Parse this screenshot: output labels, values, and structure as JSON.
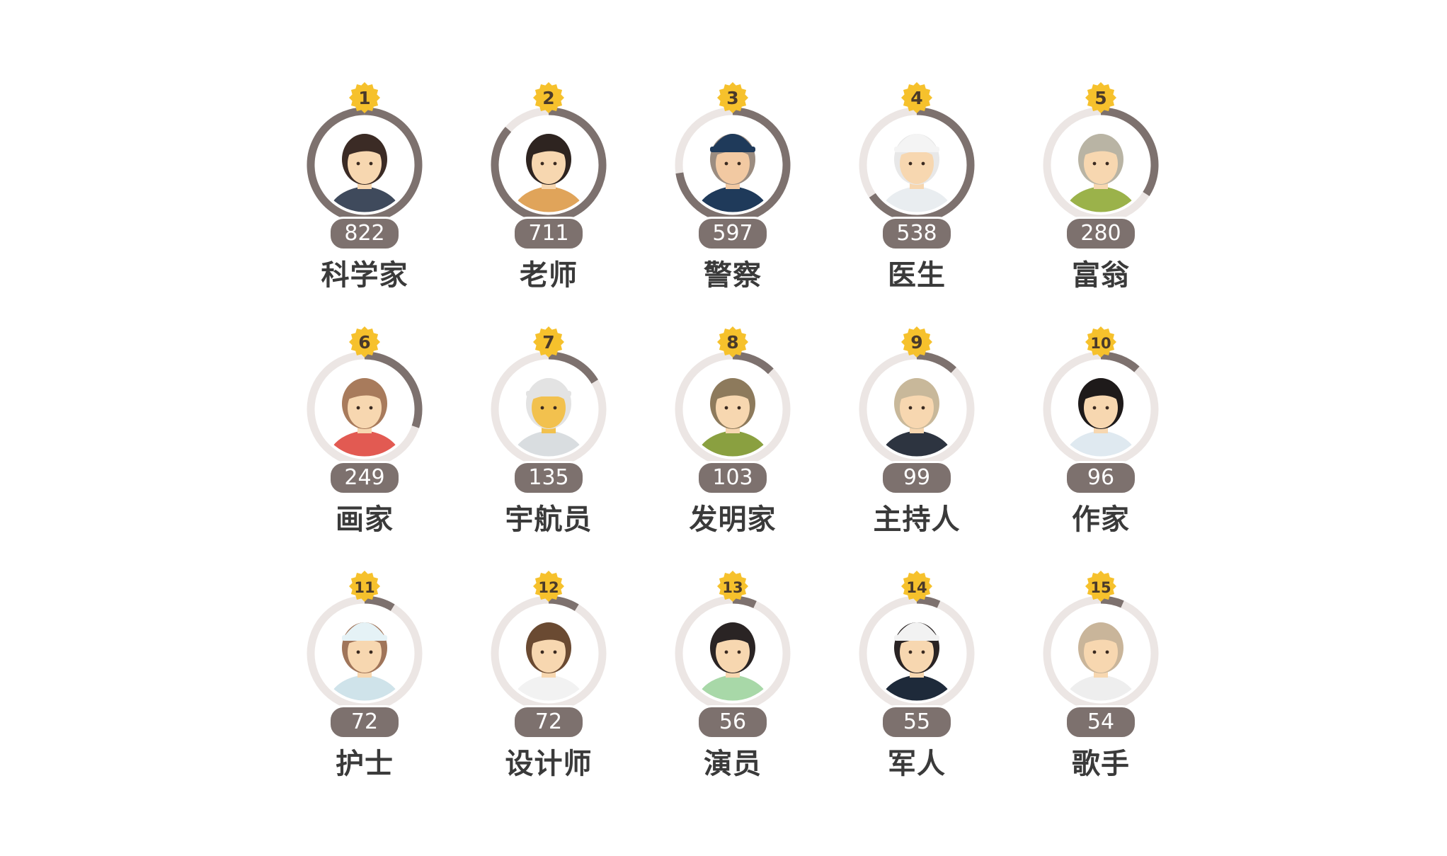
{
  "chart_data": {
    "type": "other",
    "items": [
      {
        "rank": 1,
        "label": "科学家",
        "value": 822,
        "icon": "scientist-avatar-icon"
      },
      {
        "rank": 2,
        "label": "老师",
        "value": 711,
        "icon": "teacher-avatar-icon"
      },
      {
        "rank": 3,
        "label": "警察",
        "value": 597,
        "icon": "police-avatar-icon"
      },
      {
        "rank": 4,
        "label": "医生",
        "value": 538,
        "icon": "doctor-avatar-icon"
      },
      {
        "rank": 5,
        "label": "富翁",
        "value": 280,
        "icon": "rich-person-avatar-icon"
      },
      {
        "rank": 6,
        "label": "画家",
        "value": 249,
        "icon": "painter-avatar-icon"
      },
      {
        "rank": 7,
        "label": "宇航员",
        "value": 135,
        "icon": "astronaut-avatar-icon"
      },
      {
        "rank": 8,
        "label": "发明家",
        "value": 103,
        "icon": "inventor-avatar-icon"
      },
      {
        "rank": 9,
        "label": "主持人",
        "value": 99,
        "icon": "host-avatar-icon"
      },
      {
        "rank": 10,
        "label": "作家",
        "value": 96,
        "icon": "writer-avatar-icon"
      },
      {
        "rank": 11,
        "label": "护士",
        "value": 72,
        "icon": "nurse-avatar-icon"
      },
      {
        "rank": 12,
        "label": "设计师",
        "value": 72,
        "icon": "designer-avatar-icon"
      },
      {
        "rank": 13,
        "label": "演员",
        "value": 56,
        "icon": "actor-avatar-icon"
      },
      {
        "rank": 14,
        "label": "军人",
        "value": 55,
        "icon": "soldier-avatar-icon"
      },
      {
        "rank": 15,
        "label": "歌手",
        "value": 54,
        "icon": "singer-avatar-icon"
      }
    ],
    "ring_max": 822,
    "grid": "3 rows x 5 columns"
  },
  "colors": {
    "ring_fill": "#7d716e",
    "ring_track": "#ece6e4",
    "rank_badge": "#f6c12c",
    "rank_text": "#4a3a2a",
    "pill": "#7d716e",
    "label": "#3a3a3a"
  }
}
